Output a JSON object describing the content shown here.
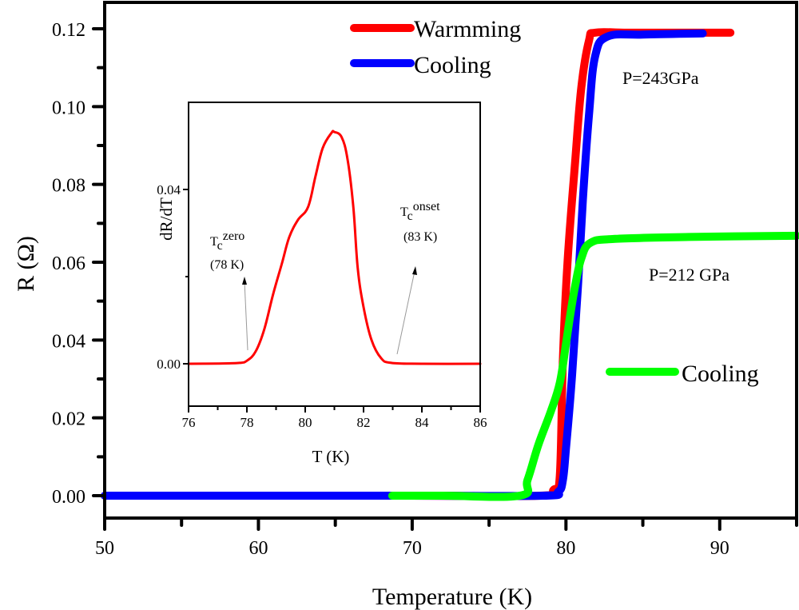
{
  "chart_data": [
    {
      "id": "main",
      "type": "line",
      "title": "",
      "xlabel": "Temperature (K)",
      "ylabel": "R (Ω)",
      "xlim": [
        50,
        95
      ],
      "ylim": [
        -0.006,
        0.125
      ],
      "xticks": [
        50,
        60,
        70,
        80,
        90
      ],
      "xticks_minor": [
        55,
        65,
        75,
        85,
        95
      ],
      "yticks": [
        0.0,
        0.02,
        0.04,
        0.06,
        0.08,
        0.1,
        0.12
      ],
      "ytick_labels": [
        "0.00",
        "0.02",
        "0.04",
        "0.06",
        "0.08",
        "0.10",
        "0.12"
      ],
      "yticks_minor": [
        0.01,
        0.03,
        0.05,
        0.07,
        0.09,
        0.11
      ],
      "grid": false,
      "series": [
        {
          "name": "Warmming",
          "group": "P=243GPa",
          "color": "#ff0000",
          "x": [
            50,
            60,
            70,
            78.3,
            79.2,
            79.6,
            79.8,
            80.1,
            80.6,
            81.0,
            81.5,
            81.9,
            84,
            88,
            90.7
          ],
          "y": [
            0,
            0,
            0,
            0,
            0.0015,
            0.005,
            0.035,
            0.06,
            0.086,
            0.105,
            0.117,
            0.119,
            0.119,
            0.119,
            0.119
          ]
        },
        {
          "name": "Cooling",
          "group": "P=243GPa",
          "color": "#0000ff",
          "x": [
            50,
            60,
            70,
            78.5,
            79.5,
            79.8,
            80.0,
            80.4,
            80.8,
            81.1,
            81.5,
            81.9,
            82.7,
            85,
            88.9
          ],
          "y": [
            0,
            0,
            0,
            0,
            0.001,
            0.004,
            0.012,
            0.031,
            0.055,
            0.076,
            0.098,
            0.113,
            0.118,
            0.1185,
            0.1188
          ]
        },
        {
          "name": "Cooling",
          "group": "P=212 GPa",
          "color": "#00ff00",
          "x": [
            68.7,
            72,
            77.0,
            77.5,
            78.2,
            79.0,
            79.6,
            80.0,
            80.3,
            80.6,
            81.0,
            81.6,
            83.2,
            88,
            95
          ],
          "y": [
            0,
            0,
            0,
            0.004,
            0.013,
            0.0215,
            0.029,
            0.039,
            0.047,
            0.054,
            0.061,
            0.065,
            0.066,
            0.0665,
            0.0668
          ]
        }
      ],
      "legend": [
        {
          "label": "Warmming",
          "color": "#ff0000",
          "placement": "top-center"
        },
        {
          "label": "Cooling",
          "color": "#0000ff",
          "placement": "top-center"
        },
        {
          "label": "Cooling",
          "color": "#00ff00",
          "placement": "middle-right"
        }
      ],
      "annotations": [
        {
          "text": "P=243GPa",
          "x": 82.9,
          "y": 0.107
        },
        {
          "text": "P=212 GPa",
          "x": 84.8,
          "y": 0.0545
        }
      ]
    },
    {
      "id": "inset",
      "type": "line",
      "title": "",
      "xlabel": "T (K)",
      "ylabel": "dR/dT",
      "xlim": [
        76,
        86
      ],
      "ylim": [
        -0.01,
        0.06
      ],
      "xticks": [
        76,
        78,
        80,
        82,
        84,
        86
      ],
      "xticks_minor": [
        77,
        79,
        81,
        83,
        85
      ],
      "yticks": [
        0.0,
        0.04
      ],
      "ytick_labels": [
        "0.00",
        "0.04"
      ],
      "yticks_minor": [
        0.02
      ],
      "grid": false,
      "series": [
        {
          "name": "dR/dT",
          "color": "#ff0000",
          "x": [
            76,
            77.0,
            77.75,
            78.0,
            78.3,
            78.6,
            78.9,
            79.2,
            79.45,
            79.75,
            80.1,
            80.35,
            80.6,
            80.9,
            81.0,
            81.25,
            81.45,
            81.65,
            81.8,
            82.0,
            82.27,
            82.6,
            82.95,
            84,
            86
          ],
          "y": [
            0,
            5e-05,
            0.0002,
            0.0007,
            0.0028,
            0.008,
            0.016,
            0.023,
            0.029,
            0.033,
            0.036,
            0.043,
            0.0495,
            0.053,
            0.0532,
            0.052,
            0.047,
            0.036,
            0.022,
            0.013,
            0.0055,
            0.0013,
            0.0002,
            0,
            0
          ]
        }
      ],
      "annotations": [
        {
          "base": "T",
          "sub": "c",
          "sup": "zero",
          "value": "(78 K)",
          "arrow_to": [
            78.0,
            0.0015
          ]
        },
        {
          "base": "T",
          "sub": "c",
          "sup": "onset",
          "value": "(83 K)",
          "arrow_to": [
            83.1,
            0.0025
          ]
        }
      ]
    }
  ]
}
